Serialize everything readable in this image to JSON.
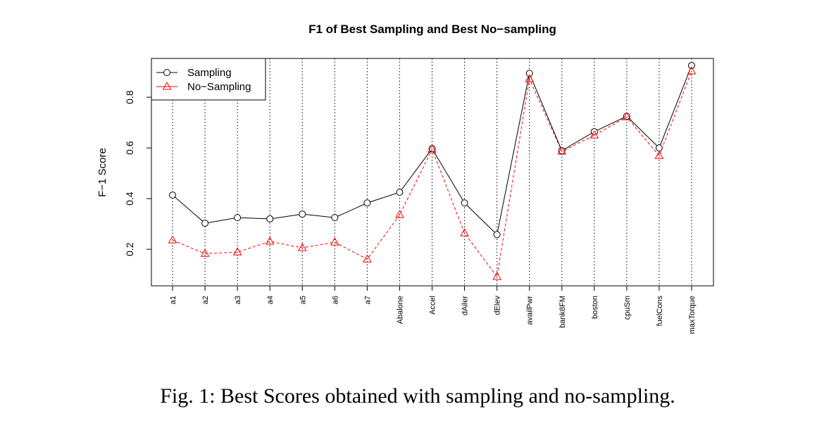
{
  "chart_data": {
    "type": "line",
    "title": "F1 of Best Sampling and Best No−sampling",
    "xlabel": "",
    "ylabel": "F−1 Score",
    "ylim": [
      0.056,
      0.953
    ],
    "yticks": [
      0.2,
      0.4,
      0.6,
      0.8
    ],
    "ytick_labels": [
      "0.2",
      "0.4",
      "0.6",
      "0.8"
    ],
    "grid": "vertical dotted",
    "legend_position": "top-left",
    "categories": [
      "a1",
      "a2",
      "a3",
      "a4",
      "a5",
      "a6",
      "a7",
      "Abalone",
      "Accel",
      "dAiler",
      "dElev",
      "availPwr",
      "bank8FM",
      "boston",
      "cpuSm",
      "fuelCons",
      "maxTorque"
    ],
    "series": [
      {
        "name": "Sampling",
        "color": "#000000",
        "marker": "circle",
        "line": "solid",
        "values": [
          0.414,
          0.303,
          0.325,
          0.32,
          0.339,
          0.325,
          0.383,
          0.425,
          0.597,
          0.383,
          0.258,
          0.894,
          0.589,
          0.664,
          0.725,
          0.6,
          0.925
        ]
      },
      {
        "name": "No−Sampling",
        "color": "#ff0000",
        "marker": "triangle",
        "line": "dashed",
        "values": [
          0.236,
          0.183,
          0.189,
          0.231,
          0.206,
          0.228,
          0.161,
          0.336,
          0.594,
          0.264,
          0.092,
          0.872,
          0.586,
          0.65,
          0.722,
          0.569,
          0.903
        ]
      }
    ]
  },
  "caption": "Fig. 1: Best Scores obtained with sampling and no-sampling."
}
